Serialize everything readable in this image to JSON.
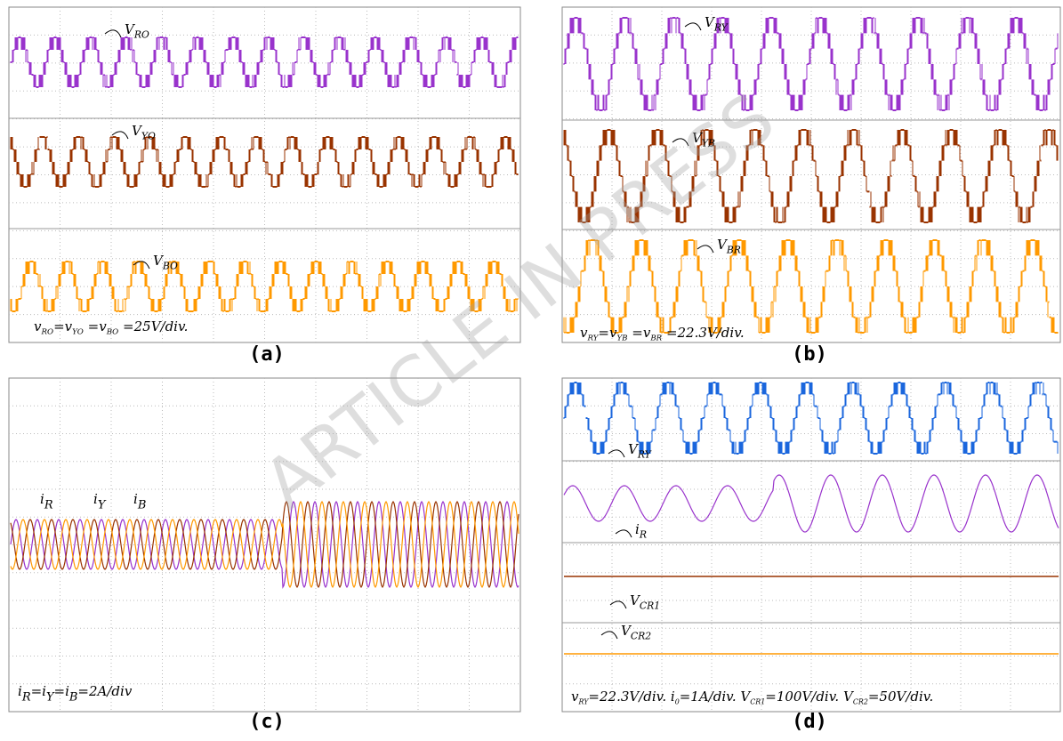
{
  "watermark": "ARTICLE IN PRESS",
  "panels": [
    {
      "label": "(a)",
      "annotations": [
        {
          "parts": [
            {
              "text": "V",
              "sub": "RO"
            }
          ]
        },
        {
          "parts": [
            {
              "text": "V",
              "sub": "YO"
            }
          ]
        },
        {
          "parts": [
            {
              "text": "V",
              "sub": "BO"
            }
          ]
        }
      ],
      "scale": {
        "parts": [
          {
            "text": "v",
            "sub": "RO"
          },
          {
            "text": "=v",
            "sub": "YO"
          },
          {
            "text": " =v",
            "sub": "BO"
          },
          {
            "text": " =25V/div."
          }
        ]
      }
    },
    {
      "label": "(b)",
      "annotations": [
        {
          "parts": [
            {
              "text": "V",
              "sub": "RY"
            }
          ]
        },
        {
          "parts": [
            {
              "text": "V",
              "sub": "YB"
            }
          ]
        },
        {
          "parts": [
            {
              "text": "V",
              "sub": "BR"
            }
          ]
        }
      ],
      "scale": {
        "parts": [
          {
            "text": "v",
            "sub": "RY"
          },
          {
            "text": "=v",
            "sub": "YB"
          },
          {
            "text": " =v",
            "sub": "BR"
          },
          {
            "text": " =22.3V/div."
          }
        ]
      }
    },
    {
      "label": "(c)",
      "annotations": [
        {
          "parts": [
            {
              "text": "i",
              "sub": "R"
            }
          ]
        },
        {
          "parts": [
            {
              "text": "i",
              "sub": "Y"
            }
          ]
        },
        {
          "parts": [
            {
              "text": "i",
              "sub": "B"
            }
          ]
        }
      ],
      "scale": {
        "parts": [
          {
            "text": "i",
            "sub": "R"
          },
          {
            "text": "=i",
            "sub": "Y"
          },
          {
            "text": "=i",
            "sub": "B"
          },
          {
            "text": "=2A/div"
          }
        ]
      }
    },
    {
      "label": "(d)",
      "annotations": [
        {
          "parts": [
            {
              "text": "V",
              "sub": "RY"
            }
          ]
        },
        {
          "parts": [
            {
              "text": "i",
              "sub": "R"
            }
          ]
        },
        {
          "parts": [
            {
              "text": "V",
              "sub": "CR1"
            }
          ]
        },
        {
          "parts": [
            {
              "text": "V",
              "sub": "CR2"
            }
          ]
        }
      ],
      "scale": {
        "parts": [
          {
            "text": "v",
            "sub": "RY"
          },
          {
            "text": "=22.3V/div.    i",
            "sub": "0"
          },
          {
            "text": "=1A/div.    V",
            "sub": "CR1"
          },
          {
            "text": "=100V/div.  V",
            "sub": "CR2"
          },
          {
            "text": "=50V/div."
          }
        ]
      }
    }
  ]
}
